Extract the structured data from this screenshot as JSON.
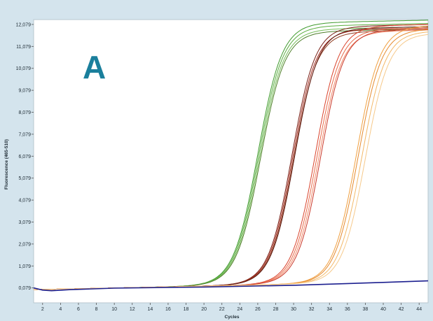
{
  "chart_data": {
    "type": "line",
    "panel_label": "A",
    "panel_label_color": "#1a7f9c",
    "xlabel": "Cycles",
    "ylabel": "Fluorescence (465-510)",
    "xlim": [
      1,
      45
    ],
    "ylim": [
      -0.6,
      12.3
    ],
    "x_ticks": [
      2,
      4,
      6,
      8,
      10,
      12,
      14,
      16,
      18,
      20,
      22,
      24,
      26,
      28,
      30,
      32,
      34,
      36,
      38,
      40,
      42,
      44
    ],
    "y_ticks": [
      0.079,
      1.079,
      2.079,
      3.079,
      4.079,
      5.079,
      6.079,
      7.079,
      8.079,
      9.079,
      10.079,
      11.079,
      12.079
    ],
    "y_tick_labels": [
      "0,079",
      "1,079",
      "2,079",
      "3,079",
      "4,079",
      "5,079",
      "6,079",
      "7,079",
      "8,079",
      "9,079",
      "10,079",
      "11,079",
      "12,079"
    ],
    "grid": false,
    "plot_background": "#ffffff",
    "frame_background": "#d4e4ed",
    "series": [
      {
        "color": "#3e9a2c",
        "ct": 26.0,
        "plateau": 11.9,
        "slope": 1.35
      },
      {
        "color": "#5aad3f",
        "ct": 26.1,
        "plateau": 11.75,
        "slope": 1.35
      },
      {
        "color": "#74bb57",
        "ct": 26.2,
        "plateau": 11.6,
        "slope": 1.35
      },
      {
        "color": "#4f7f2a",
        "ct": 26.3,
        "plateau": 11.5,
        "slope": 1.35
      },
      {
        "color": "#7a1f16",
        "ct": 29.8,
        "plateau": 11.7,
        "slope": 1.3
      },
      {
        "color": "#a62b1d",
        "ct": 29.9,
        "plateau": 11.55,
        "slope": 1.3
      },
      {
        "color": "#8e3a1e",
        "ct": 30.0,
        "plateau": 11.45,
        "slope": 1.3
      },
      {
        "color": "#5e1a12",
        "ct": 30.1,
        "plateau": 11.6,
        "slope": 1.3
      },
      {
        "color": "#d9432c",
        "ct": 32.4,
        "plateau": 11.7,
        "slope": 1.3
      },
      {
        "color": "#e86a4a",
        "ct": 32.6,
        "plateau": 11.55,
        "slope": 1.3
      },
      {
        "color": "#f08a6a",
        "ct": 32.8,
        "plateau": 11.45,
        "slope": 1.3
      },
      {
        "color": "#c9382a",
        "ct": 33.0,
        "plateau": 11.5,
        "slope": 1.3
      },
      {
        "color": "#f0a040",
        "ct": 37.0,
        "plateau": 11.65,
        "slope": 1.3
      },
      {
        "color": "#e58a2e",
        "ct": 37.2,
        "plateau": 11.5,
        "slope": 1.3
      },
      {
        "color": "#f3b867",
        "ct": 37.6,
        "plateau": 11.4,
        "slope": 1.3
      },
      {
        "color": "#f6c98a",
        "ct": 38.0,
        "plateau": 11.3,
        "slope": 1.3
      }
    ],
    "negative_control": {
      "color": "#1c1f8f",
      "x": [
        1,
        2,
        3,
        5,
        10,
        20,
        30,
        40,
        45
      ],
      "y": [
        0.08,
        -0.02,
        -0.05,
        0.0,
        0.07,
        0.12,
        0.2,
        0.33,
        0.4
      ]
    }
  }
}
